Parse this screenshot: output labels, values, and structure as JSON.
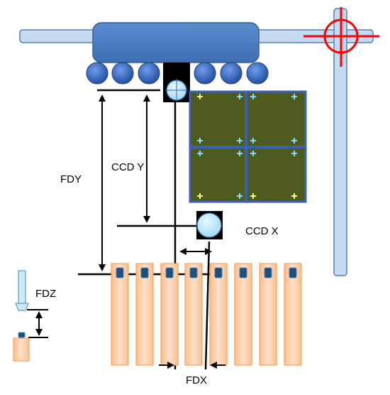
{
  "labels": {
    "fdy": "FDY",
    "ccd_y": "CCD Y",
    "ccd_x": "CCD X",
    "fdz": "FDZ",
    "fdx": "FDX"
  },
  "colors": {
    "rail": "#c5d9f1",
    "rail_edge": "#4f81bd",
    "head": "#4f81bd",
    "head_edge": "#385d8a",
    "nozzle": "#2e62b8",
    "camera": "#000000",
    "lens": "#bfe8f7",
    "board_fill": "#4f5a1e",
    "board_grid": "#3a63b5",
    "fiducial": "#ffff80",
    "fiducial_alt": "#80e0ff",
    "feeder": "#fcd5b4",
    "feeder_edge": "#f79646",
    "feeder_slot": "#1f4e79",
    "crosshair": "#ff0000",
    "arrow": "#000000",
    "tool": "#c6ecf9"
  },
  "icons": {
    "crosshair": "crosshair-icon",
    "camera": "camera-icon",
    "lens": "ccd-lens-icon"
  },
  "counts": {
    "nozzles_left": 3,
    "nozzles_right": 3,
    "feeders": 8,
    "board_cells": 4
  }
}
